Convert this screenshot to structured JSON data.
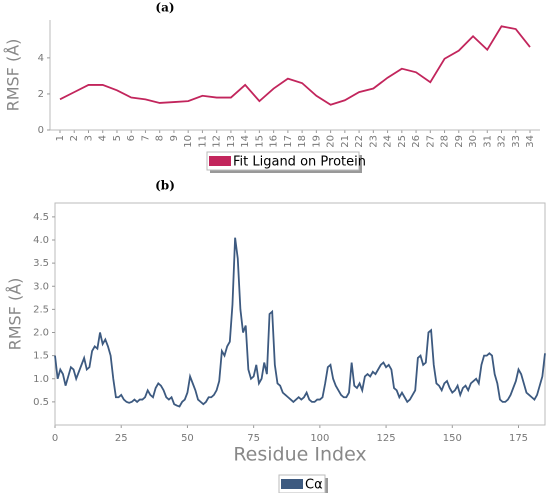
{
  "chart_data": [
    {
      "type": "line",
      "title": "(a)",
      "y_label": "RMSF (Å)",
      "categories": [
        "1",
        "2",
        "3",
        "4",
        "5",
        "6",
        "7",
        "8",
        "9",
        "10",
        "11",
        "12",
        "13",
        "14",
        "15",
        "16",
        "17",
        "18",
        "19",
        "20",
        "21",
        "22",
        "23",
        "24",
        "25",
        "26",
        "27",
        "28",
        "29",
        "30",
        "31",
        "32",
        "33",
        "34"
      ],
      "series": [
        {
          "name": "Fit Ligand on Protein",
          "color": "#c2255c",
          "values": [
            1.7,
            2.1,
            2.5,
            2.5,
            2.2,
            1.8,
            1.7,
            1.5,
            1.55,
            1.6,
            1.9,
            1.8,
            1.8,
            2.5,
            1.6,
            2.3,
            2.85,
            2.6,
            1.9,
            1.4,
            1.65,
            2.1,
            2.3,
            2.9,
            3.4,
            3.2,
            2.65,
            3.95,
            4.4,
            5.2,
            4.45,
            5.75,
            5.6,
            4.6
          ]
        }
      ],
      "ylim": [
        0,
        6.1
      ],
      "yticks": [
        0,
        2,
        4
      ]
    },
    {
      "type": "line",
      "title": "(b)",
      "y_label": "RMSF (Å)",
      "x_label": "Residue Index",
      "x": [
        0,
        1,
        2,
        3,
        4,
        5,
        6,
        7,
        8,
        9,
        10,
        11,
        12,
        13,
        14,
        15,
        16,
        17,
        18,
        19,
        20,
        21,
        22,
        23,
        24,
        25,
        26,
        27,
        28,
        29,
        30,
        31,
        32,
        33,
        34,
        35,
        36,
        37,
        38,
        39,
        40,
        41,
        42,
        43,
        44,
        45,
        46,
        47,
        48,
        49,
        50,
        51,
        52,
        53,
        54,
        55,
        56,
        57,
        58,
        59,
        60,
        61,
        62,
        63,
        64,
        65,
        66,
        67,
        68,
        69,
        70,
        71,
        72,
        73,
        74,
        75,
        76,
        77,
        78,
        79,
        80,
        81,
        82,
        83,
        84,
        85,
        86,
        87,
        88,
        89,
        90,
        91,
        92,
        93,
        94,
        95,
        96,
        97,
        98,
        99,
        100,
        101,
        102,
        103,
        104,
        105,
        106,
        107,
        108,
        109,
        110,
        111,
        112,
        113,
        114,
        115,
        116,
        117,
        118,
        119,
        120,
        121,
        122,
        123,
        124,
        125,
        126,
        127,
        128,
        129,
        130,
        131,
        132,
        133,
        134,
        135,
        136,
        137,
        138,
        139,
        140,
        141,
        142,
        143,
        144,
        145,
        146,
        147,
        148,
        149,
        150,
        151,
        152,
        153,
        154,
        155,
        156,
        157,
        158,
        159,
        160,
        161,
        162,
        163,
        164,
        165,
        166,
        167,
        168,
        169,
        170,
        171,
        172,
        173,
        174,
        175,
        176,
        177,
        178,
        179,
        180,
        181,
        182,
        183,
        184,
        185
      ],
      "series": [
        {
          "name": "Cα",
          "color": "#3d5a80",
          "values": [
            1.5,
            1.0,
            1.2,
            1.1,
            0.85,
            1.05,
            1.25,
            1.2,
            1.0,
            1.15,
            1.3,
            1.45,
            1.2,
            1.25,
            1.6,
            1.7,
            1.65,
            2.0,
            1.75,
            1.85,
            1.7,
            1.5,
            1.0,
            0.6,
            0.6,
            0.65,
            0.55,
            0.5,
            0.48,
            0.5,
            0.55,
            0.5,
            0.55,
            0.55,
            0.6,
            0.75,
            0.65,
            0.6,
            0.8,
            0.9,
            0.85,
            0.75,
            0.6,
            0.55,
            0.6,
            0.45,
            0.42,
            0.4,
            0.5,
            0.55,
            0.7,
            1.05,
            0.9,
            0.75,
            0.55,
            0.5,
            0.45,
            0.5,
            0.6,
            0.6,
            0.65,
            0.75,
            0.95,
            1.6,
            1.5,
            1.7,
            1.8,
            2.6,
            4.05,
            3.6,
            2.5,
            2.0,
            2.15,
            1.2,
            1.0,
            1.05,
            1.3,
            0.9,
            1.0,
            1.35,
            1.1,
            2.4,
            2.45,
            1.3,
            0.9,
            0.85,
            0.7,
            0.65,
            0.6,
            0.55,
            0.5,
            0.55,
            0.6,
            0.55,
            0.6,
            0.7,
            0.55,
            0.5,
            0.5,
            0.55,
            0.55,
            0.6,
            0.9,
            1.25,
            1.3,
            1.0,
            0.85,
            0.75,
            0.65,
            0.6,
            0.6,
            0.7,
            1.35,
            0.85,
            0.8,
            0.9,
            0.75,
            1.05,
            1.1,
            1.05,
            1.15,
            1.1,
            1.2,
            1.3,
            1.35,
            1.25,
            1.3,
            1.2,
            0.8,
            0.75,
            0.6,
            0.7,
            0.6,
            0.5,
            0.55,
            0.65,
            0.75,
            1.45,
            1.5,
            1.3,
            1.35,
            2.0,
            2.05,
            1.3,
            0.9,
            0.85,
            0.75,
            0.9,
            0.95,
            0.8,
            0.7,
            0.75,
            0.85,
            0.65,
            0.8,
            0.85,
            0.75,
            0.9,
            0.95,
            1.0,
            0.9,
            1.3,
            1.5,
            1.5,
            1.55,
            1.5,
            1.1,
            0.9,
            0.55,
            0.5,
            0.5,
            0.55,
            0.65,
            0.8,
            0.95,
            1.2,
            1.1,
            0.9,
            0.7,
            0.65,
            0.6,
            0.55,
            0.65,
            0.85,
            1.05,
            1.55
          ]
        }
      ],
      "xlim": [
        0,
        185
      ],
      "xticks": [
        0,
        25,
        50,
        75,
        100,
        125,
        150,
        175
      ],
      "ylim": [
        0,
        4.8
      ],
      "yticks": [
        0.5,
        1.0,
        1.5,
        2.0,
        2.5,
        3.0,
        3.5,
        4.0,
        4.5
      ]
    }
  ]
}
